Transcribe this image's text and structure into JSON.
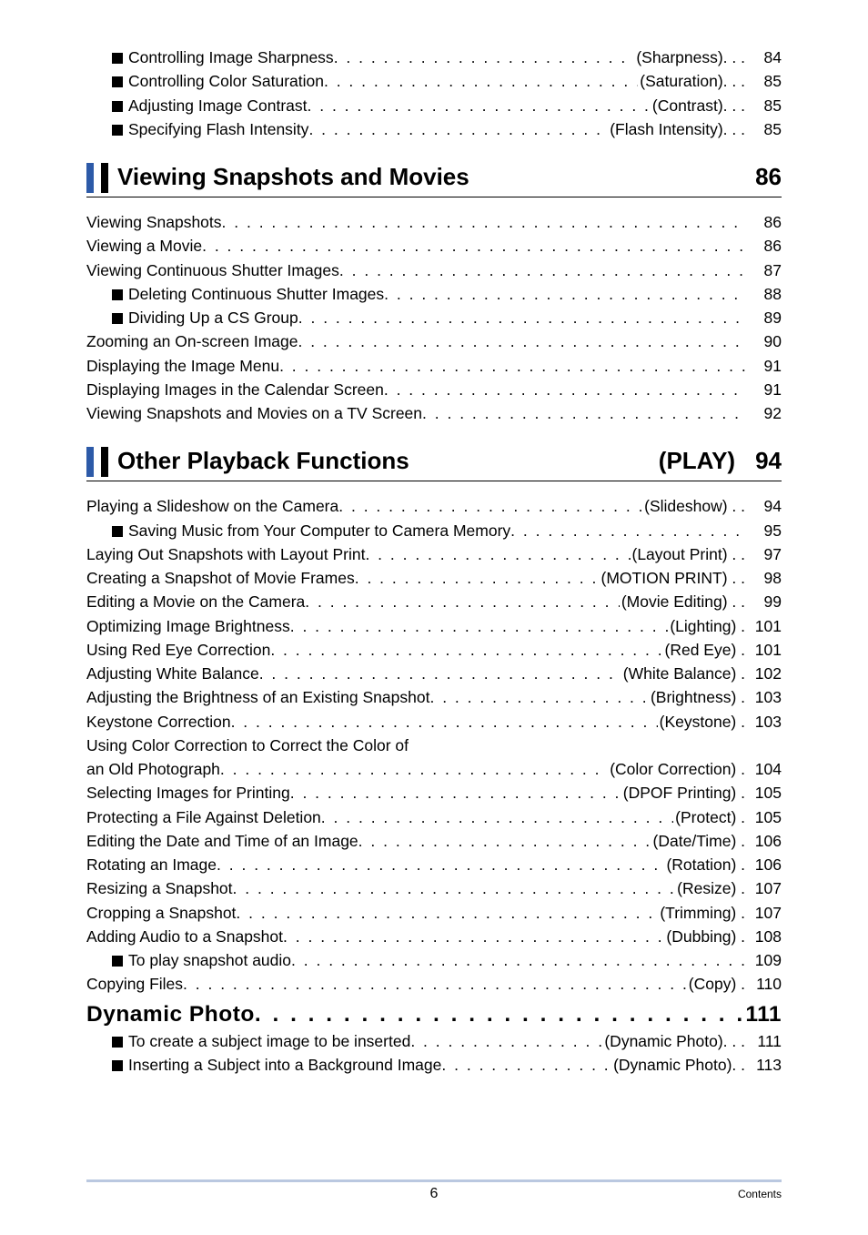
{
  "top_entries": [
    {
      "bullet": true,
      "indent": true,
      "label": "Controlling Image Sharpness",
      "suffix": "(Sharpness). . .",
      "page": "84"
    },
    {
      "bullet": true,
      "indent": true,
      "label": "Controlling Color Saturation",
      "suffix": " (Saturation). . .",
      "page": "85"
    },
    {
      "bullet": true,
      "indent": true,
      "label": "Adjusting Image Contrast",
      "suffix": "(Contrast). . .",
      "page": "85"
    },
    {
      "bullet": true,
      "indent": true,
      "label": "Specifying Flash Intensity ",
      "suffix": "(Flash Intensity). . .",
      "page": "85"
    }
  ],
  "section1": {
    "title": "Viewing Snapshots and Movies",
    "page": "86",
    "entries": [
      {
        "bullet": false,
        "indent": false,
        "label": "Viewing Snapshots ",
        "suffix": "",
        "page": " 86"
      },
      {
        "bullet": false,
        "indent": false,
        "label": "Viewing a Movie",
        "suffix": "",
        "page": " 86"
      },
      {
        "bullet": false,
        "indent": false,
        "label": "Viewing Continuous Shutter Images",
        "suffix": "",
        "page": " 87"
      },
      {
        "bullet": true,
        "indent": true,
        "label": "Deleting Continuous Shutter Images ",
        "suffix": "",
        "page": " 88"
      },
      {
        "bullet": true,
        "indent": true,
        "label": "Dividing Up a CS Group",
        "suffix": "",
        "page": " 89"
      },
      {
        "bullet": false,
        "indent": false,
        "label": "Zooming an On-screen Image",
        "suffix": "",
        "page": " 90"
      },
      {
        "bullet": false,
        "indent": false,
        "label": "Displaying the Image Menu",
        "suffix": "",
        "page": " 91"
      },
      {
        "bullet": false,
        "indent": false,
        "label": "Displaying Images in the Calendar Screen",
        "suffix": "",
        "page": " 91"
      },
      {
        "bullet": false,
        "indent": false,
        "label": "Viewing Snapshots and Movies on a TV Screen",
        "suffix": "",
        "page": " 92"
      }
    ]
  },
  "section2": {
    "title": "Other Playback Functions",
    "title_suffix": "(PLAY)",
    "page": "94",
    "entries": [
      {
        "bullet": false,
        "indent": false,
        "label": "Playing a Slideshow on the Camera",
        "suffix": "(Slideshow) . .",
        "page": "94"
      },
      {
        "bullet": true,
        "indent": true,
        "label": "Saving Music from Your Computer to Camera Memory",
        "suffix": "",
        "page": " 95"
      },
      {
        "bullet": false,
        "indent": false,
        "label": "Laying Out Snapshots with Layout Print",
        "suffix": " (Layout Print) . .",
        "page": "97"
      },
      {
        "bullet": false,
        "indent": false,
        "label": "Creating a Snapshot of Movie Frames ",
        "suffix": "(MOTION PRINT) . .",
        "page": "98"
      },
      {
        "bullet": false,
        "indent": false,
        "label": "Editing a Movie on the Camera  ",
        "suffix": " (Movie Editing) . .",
        "page": "99"
      },
      {
        "bullet": false,
        "indent": false,
        "label": "Optimizing Image Brightness ",
        "suffix": "(Lighting) .",
        "page": " 101"
      },
      {
        "bullet": false,
        "indent": false,
        "label": "Using Red Eye Correction  ",
        "suffix": "(Red Eye) .",
        "page": " 101"
      },
      {
        "bullet": false,
        "indent": false,
        "label": "Adjusting White Balance",
        "suffix": " (White Balance) .",
        "page": " 102"
      },
      {
        "bullet": false,
        "indent": false,
        "label": "Adjusting the Brightness of an Existing Snapshot ",
        "suffix": "(Brightness) .",
        "page": " 103"
      },
      {
        "bullet": false,
        "indent": false,
        "label": "Keystone Correction ",
        "suffix": "(Keystone) .",
        "page": " 103"
      },
      {
        "bullet": false,
        "indent": false,
        "label": "Using Color Correction to Correct the Color of ",
        "suffix": "",
        "page": "",
        "nowrap": true,
        "nodots": true
      },
      {
        "bullet": false,
        "indent": false,
        "label": "an Old Photograph ",
        "suffix": "(Color Correction) .",
        "page": " 104"
      },
      {
        "bullet": false,
        "indent": false,
        "label": "Selecting Images for Printing ",
        "suffix": " (DPOF Printing) .",
        "page": " 105"
      },
      {
        "bullet": false,
        "indent": false,
        "label": "Protecting a File Against Deletion",
        "suffix": " (Protect) .",
        "page": " 105"
      },
      {
        "bullet": false,
        "indent": false,
        "label": "Editing the Date and Time of an Image  ",
        "suffix": "(Date/Time) .",
        "page": " 106"
      },
      {
        "bullet": false,
        "indent": false,
        "label": "Rotating an Image  ",
        "suffix": " (Rotation) .",
        "page": " 106"
      },
      {
        "bullet": false,
        "indent": false,
        "label": "Resizing a Snapshot",
        "suffix": "(Resize) .",
        "page": " 107"
      },
      {
        "bullet": false,
        "indent": false,
        "label": "Cropping a Snapshot ",
        "suffix": "(Trimming) .",
        "page": " 107"
      },
      {
        "bullet": false,
        "indent": false,
        "label": "Adding Audio to a Snapshot ",
        "suffix": " (Dubbing) .",
        "page": " 108"
      },
      {
        "bullet": true,
        "indent": true,
        "label": "To play snapshot audio",
        "suffix": "",
        "page": " 109"
      },
      {
        "bullet": false,
        "indent": false,
        "label": "Copying Files ",
        "suffix": "(Copy) .",
        "page": " 110"
      }
    ],
    "dynamic_photo": {
      "label": "Dynamic Photo",
      "page": "111"
    },
    "dynamic_entries": [
      {
        "bullet": true,
        "indent": true,
        "label": "To create a subject image to be inserted",
        "suffix": " (Dynamic Photo). . .",
        "page": "111"
      },
      {
        "bullet": true,
        "indent": true,
        "label": "Inserting a Subject into a Background Image ",
        "suffix": " (Dynamic Photo). .",
        "page": " 113"
      }
    ]
  },
  "footer": {
    "page": "6",
    "label": "Contents"
  }
}
